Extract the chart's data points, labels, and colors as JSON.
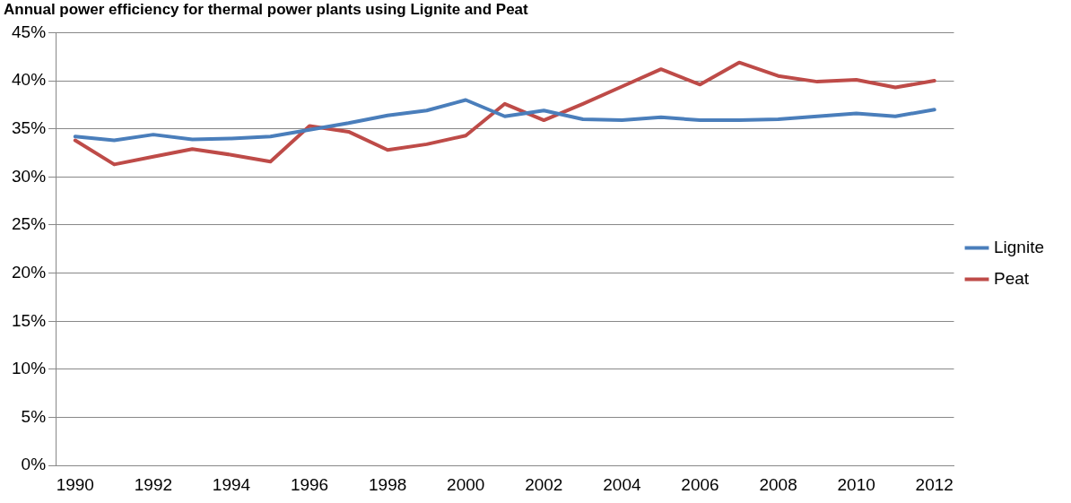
{
  "chart_data": {
    "type": "line",
    "title": "Annual power efficiency for thermal power plants using Lignite and Peat",
    "categories": [
      "1990",
      null,
      "1992",
      null,
      "1994",
      null,
      "1996",
      null,
      "1998",
      null,
      "2000",
      null,
      "2002",
      null,
      "2004",
      null,
      "2006",
      null,
      "2008",
      null,
      "2010",
      null,
      "2012"
    ],
    "series": [
      {
        "name": "Lignite",
        "color": "#4a7ebb",
        "values": [
          34.2,
          33.8,
          34.4,
          33.9,
          34.0,
          34.2,
          34.9,
          35.6,
          36.4,
          36.9,
          38.0,
          36.3,
          36.9,
          36.0,
          35.9,
          36.2,
          35.9,
          35.9,
          36.0,
          36.3,
          36.6,
          36.3,
          37.0
        ]
      },
      {
        "name": "Peat",
        "color": "#be4b48",
        "values": [
          33.8,
          31.3,
          32.1,
          32.9,
          32.3,
          31.6,
          35.3,
          34.7,
          32.8,
          33.4,
          34.3,
          37.6,
          35.9,
          37.6,
          39.4,
          41.2,
          39.6,
          41.9,
          40.5,
          39.9,
          40.1,
          39.3,
          40.0
        ]
      }
    ],
    "ylim": [
      0,
      45
    ],
    "yticks": [
      {
        "value": 0,
        "label": "0%"
      },
      {
        "value": 5,
        "label": "5%"
      },
      {
        "value": 10,
        "label": "10%"
      },
      {
        "value": 15,
        "label": "15%"
      },
      {
        "value": 20,
        "label": "20%"
      },
      {
        "value": 25,
        "label": "25%"
      },
      {
        "value": 30,
        "label": "30%"
      },
      {
        "value": 35,
        "label": "35%"
      },
      {
        "value": 40,
        "label": "40%"
      },
      {
        "value": 45,
        "label": "45%"
      }
    ],
    "grid": "y",
    "legend": "right",
    "marker": "none",
    "line_style": "solid"
  }
}
